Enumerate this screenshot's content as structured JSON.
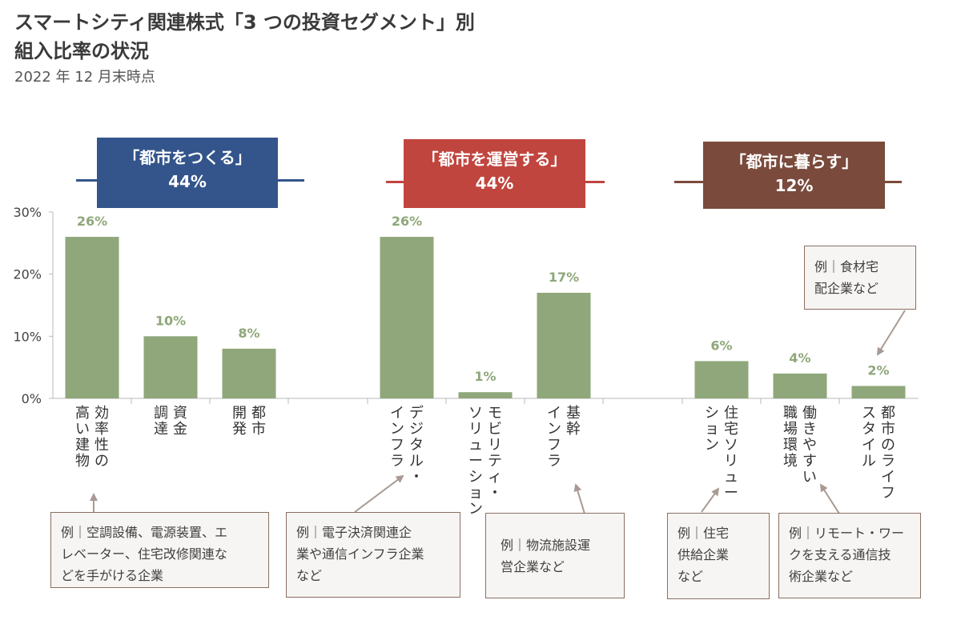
{
  "title_lines": [
    "スマートシティ関連株式「3 つの投資セグメント」別",
    "組入比率の状況"
  ],
  "subtitle": "2022 年 12 月末時点",
  "segments": [
    {
      "name": "「都市をつくる」",
      "share": "44%",
      "color": "#34558b"
    },
    {
      "name": "「都市を運営する」",
      "share": "44%",
      "color": "#c0453e"
    },
    {
      "name": "「都市に暮らす」",
      "share": "12%",
      "color": "#7a4a3c"
    }
  ],
  "chart_data": {
    "type": "bar",
    "categories": [
      "効率性の高い建物",
      "資金調達",
      "都市開発",
      "デジタル・インフラ",
      "モビリティ・ソリューション",
      "基幹インフラ",
      "住宅ソリューション",
      "働きやすい職場環境",
      "都市のライフスタイル"
    ],
    "category_lines": [
      [
        "効率性の",
        "高い建物"
      ],
      [
        "資金",
        "調達"
      ],
      [
        "都市",
        "開発"
      ],
      [
        "デジタル・",
        "インフラ"
      ],
      [
        "モビリティ・",
        "ソリューション"
      ],
      [
        "基幹",
        "インフラ"
      ],
      [
        "住宅ソリュー",
        "ション"
      ],
      [
        "働きやすい",
        "職場環境"
      ],
      [
        "都市のライフ",
        "スタイル"
      ]
    ],
    "values": [
      26,
      10,
      8,
      26,
      1,
      17,
      6,
      4,
      2
    ],
    "data_labels": [
      "26%",
      "10%",
      "8%",
      "26%",
      "1%",
      "17%",
      "6%",
      "4%",
      "2%"
    ],
    "ylim": [
      0,
      30
    ],
    "yticks": [
      "0%",
      "10%",
      "20%",
      "30%"
    ],
    "bar_color": "#8fa77a",
    "label_color": "#8fa77a"
  },
  "callouts": [
    {
      "lines": [
        "例｜空調設備、電源装置、エ",
        "レベーター、住宅改修関連な",
        "どを手がける企業"
      ]
    },
    {
      "lines": [
        "例｜電子決済関連企",
        "業や通信インフラ企業",
        "など"
      ]
    },
    {
      "lines": [
        "例｜物流施設運",
        "営企業など"
      ]
    },
    {
      "lines": [
        "例｜住宅",
        "供給企業",
        "など"
      ]
    },
    {
      "lines": [
        "例｜リモート・ワー",
        "クを支える通信技",
        "術企業など"
      ]
    },
    {
      "lines": [
        "例｜食材宅",
        "配企業など"
      ]
    }
  ]
}
